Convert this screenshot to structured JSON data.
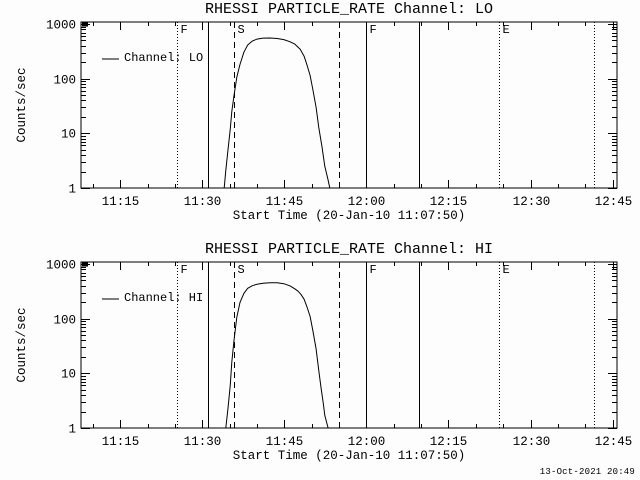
{
  "window": {
    "background": "#fdfdfd",
    "foreground": "#000000"
  },
  "footer": {
    "timestamp": "13-Oct-2021 20:49"
  },
  "chart_data": [
    {
      "type": "line",
      "title": "RHESSI PARTICLE_RATE Channel: LO",
      "xlabel": "Start Time (20-Jan-10 11:07:50)",
      "ylabel": "Counts/sec",
      "legend_label": "Channel: LO",
      "legend_position": "top-left",
      "yscale": "log",
      "ylim": [
        1,
        1090
      ],
      "grid": false,
      "y_ticks": [
        {
          "v": 1,
          "label": "1"
        },
        {
          "v": 10,
          "label": "10"
        },
        {
          "v": 100,
          "label": "100"
        },
        {
          "v": 1000,
          "label": "1000"
        }
      ],
      "x_axis_minutes_after_1100": {
        "start": 7.83,
        "end": 105.8
      },
      "x_minor_tick_step_minutes": 5,
      "x_ticks": [
        {
          "t": 15,
          "label": "11:15"
        },
        {
          "t": 30,
          "label": "11:30"
        },
        {
          "t": 45,
          "label": "11:45"
        },
        {
          "t": 60,
          "label": "12:00"
        },
        {
          "t": 75,
          "label": "12:15"
        },
        {
          "t": 90,
          "label": "12:30"
        },
        {
          "t": 105,
          "label": "12:45"
        }
      ],
      "event_lines": [
        {
          "t_min": 25.4,
          "style": "dotted",
          "label": "F"
        },
        {
          "t_min": 31.0,
          "style": "solid",
          "label": ""
        },
        {
          "t_min": 35.8,
          "style": "dashed",
          "label": "S"
        },
        {
          "t_min": 55.0,
          "style": "dashed",
          "label": ""
        },
        {
          "t_min": 59.9,
          "style": "solid",
          "label": "F"
        },
        {
          "t_min": 69.6,
          "style": "solid",
          "label": ""
        },
        {
          "t_min": 84.2,
          "style": "dotted",
          "label": "E"
        },
        {
          "t_min": 101.6,
          "style": "dotted",
          "label": ""
        }
      ],
      "start_spike": true,
      "series": [
        {
          "name": "Channel: LO",
          "points": [
            [
              34.0,
              1.0
            ],
            [
              34.3,
              2.1
            ],
            [
              34.7,
              5.0
            ],
            [
              35.1,
              11.7
            ],
            [
              35.4,
              25
            ],
            [
              35.8,
              49
            ],
            [
              36.3,
              106
            ],
            [
              36.9,
              183
            ],
            [
              37.6,
              305
            ],
            [
              38.3,
              414
            ],
            [
              39.1,
              486
            ],
            [
              40.0,
              530
            ],
            [
              41.1,
              552
            ],
            [
              42.4,
              555
            ],
            [
              43.7,
              545
            ],
            [
              44.9,
              520
            ],
            [
              46.0,
              475
            ],
            [
              46.9,
              430
            ],
            [
              47.9,
              347
            ],
            [
              48.6,
              258
            ],
            [
              49.1,
              183
            ],
            [
              49.7,
              115
            ],
            [
              50.2,
              64
            ],
            [
              50.8,
              30
            ],
            [
              51.3,
              12.7
            ],
            [
              51.9,
              5.5
            ],
            [
              52.4,
              2.5
            ],
            [
              53.0,
              1.4
            ],
            [
              53.3,
              1.0
            ]
          ]
        }
      ]
    },
    {
      "type": "line",
      "title": "RHESSI PARTICLE_RATE Channel: HI",
      "xlabel": "Start Time (20-Jan-10 11:07:50)",
      "ylabel": "Counts/sec",
      "legend_label": "Channel: HI",
      "legend_position": "top-left",
      "yscale": "log",
      "ylim": [
        1,
        1090
      ],
      "grid": false,
      "y_ticks": [
        {
          "v": 1,
          "label": "1"
        },
        {
          "v": 10,
          "label": "10"
        },
        {
          "v": 100,
          "label": "100"
        },
        {
          "v": 1000,
          "label": "1000"
        }
      ],
      "x_axis_minutes_after_1100": {
        "start": 7.83,
        "end": 105.8
      },
      "x_minor_tick_step_minutes": 5,
      "x_ticks": [
        {
          "t": 15,
          "label": "11:15"
        },
        {
          "t": 30,
          "label": "11:30"
        },
        {
          "t": 45,
          "label": "11:45"
        },
        {
          "t": 60,
          "label": "12:00"
        },
        {
          "t": 75,
          "label": "12:15"
        },
        {
          "t": 90,
          "label": "12:30"
        },
        {
          "t": 105,
          "label": "12:45"
        }
      ],
      "event_lines": [
        {
          "t_min": 25.4,
          "style": "dotted",
          "label": "F"
        },
        {
          "t_min": 31.0,
          "style": "solid",
          "label": ""
        },
        {
          "t_min": 35.8,
          "style": "dashed",
          "label": "S"
        },
        {
          "t_min": 55.0,
          "style": "dashed",
          "label": ""
        },
        {
          "t_min": 59.9,
          "style": "solid",
          "label": "F"
        },
        {
          "t_min": 69.6,
          "style": "solid",
          "label": ""
        },
        {
          "t_min": 84.2,
          "style": "dotted",
          "label": "E"
        },
        {
          "t_min": 101.6,
          "style": "dotted",
          "label": ""
        }
      ],
      "start_spike": true,
      "series": [
        {
          "name": "Channel: HI",
          "points": [
            [
              34.3,
              1.0
            ],
            [
              34.7,
              2.3
            ],
            [
              35.1,
              5.9
            ],
            [
              35.4,
              16
            ],
            [
              35.8,
              40
            ],
            [
              36.3,
              106
            ],
            [
              36.9,
              199
            ],
            [
              37.6,
              292
            ],
            [
              38.3,
              360
            ],
            [
              39.1,
              400
            ],
            [
              40.0,
              427
            ],
            [
              41.1,
              445
            ],
            [
              42.4,
              455
            ],
            [
              43.7,
              455
            ],
            [
              44.9,
              437
            ],
            [
              46.0,
              400
            ],
            [
              46.9,
              352
            ],
            [
              47.5,
              318
            ],
            [
              48.0,
              281
            ],
            [
              48.6,
              227
            ],
            [
              49.1,
              168
            ],
            [
              49.7,
              110
            ],
            [
              50.2,
              61
            ],
            [
              50.8,
              28
            ],
            [
              51.3,
              11.2
            ],
            [
              51.7,
              5.5
            ],
            [
              52.1,
              2.9
            ],
            [
              52.4,
              1.7
            ],
            [
              53.0,
              1.0
            ]
          ]
        }
      ]
    }
  ]
}
